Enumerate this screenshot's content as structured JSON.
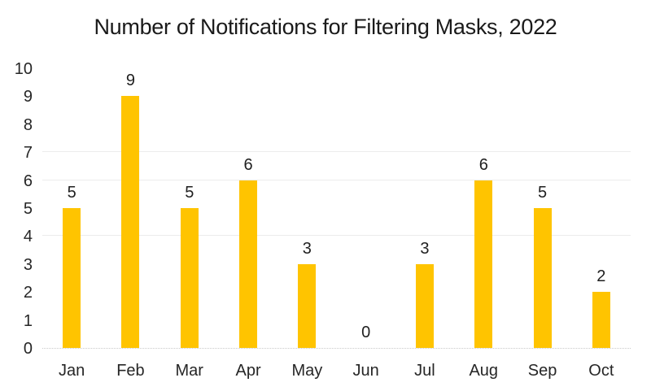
{
  "chart_data": {
    "type": "bar",
    "title": "Number of Notifications for Filtering Masks, 2022",
    "categories": [
      "Jan",
      "Feb",
      "Mar",
      "Apr",
      "May",
      "Jun",
      "Jul",
      "Aug",
      "Sep",
      "Oct"
    ],
    "values": [
      5,
      9,
      5,
      6,
      3,
      0,
      3,
      6,
      5,
      2
    ],
    "xlabel": "",
    "ylabel": "",
    "ylim": [
      0,
      10
    ],
    "y_ticks": [
      0,
      1,
      2,
      3,
      4,
      5,
      6,
      7,
      8,
      9,
      10
    ],
    "visible_gridlines": [
      4,
      6,
      7
    ],
    "data_labels_shown": true,
    "legend_position": "none",
    "bar_color": "#FFC400",
    "label_color": "#262626",
    "title_color": "#1a1a1a",
    "gridline_color": "#ececec",
    "baseline_color": "#c9c9c9",
    "baseline_style": "dotted",
    "background_color": "#ffffff"
  }
}
